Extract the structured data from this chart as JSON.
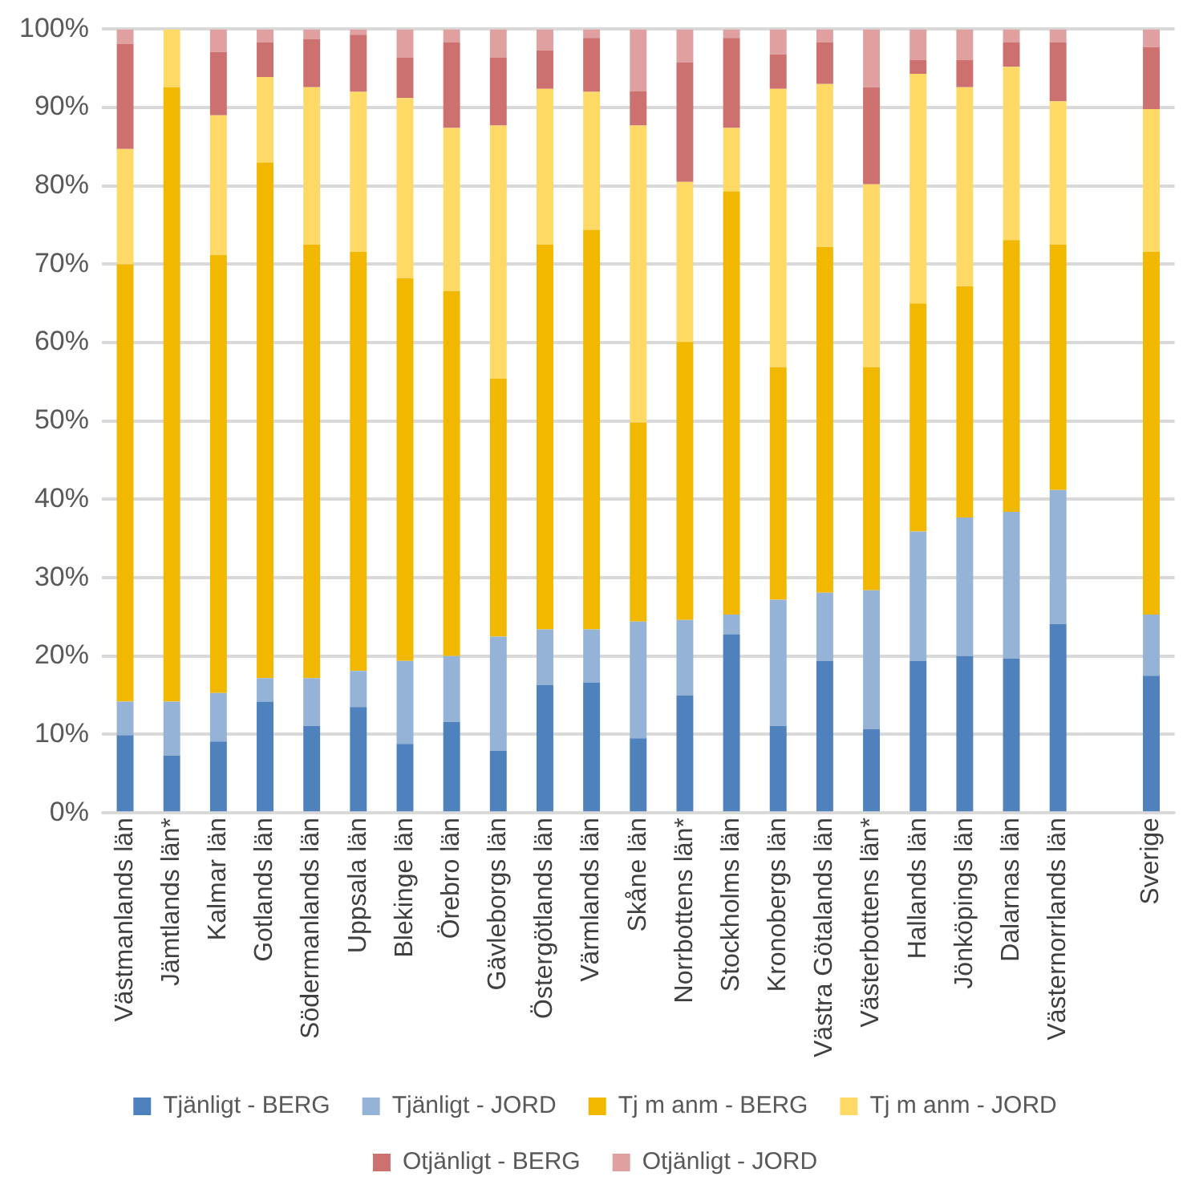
{
  "chart_data": {
    "type": "bar",
    "stacked": true,
    "categories": [
      "Västmanlands län",
      "Jämtlands län*",
      "Kalmar län",
      "Gotlands län",
      "Södermanlands län",
      "Uppsala län",
      "Blekinge län",
      "Örebro län",
      "Gävleborgs län",
      "Östergötlands län",
      "Värmlands län",
      "Skåne län",
      "Norrbottens län*",
      "Stockholms län",
      "Kronobergs län",
      "Västra Götalands län",
      "Västerbottens län*",
      "Hallands län",
      "Jönköpings län",
      "Dalarnas län",
      "Västernorrlands län",
      null,
      "Sverige"
    ],
    "series": [
      {
        "name": "Tjänligt - BERG",
        "color": "#4f81bd",
        "values": [
          9.9,
          7.3,
          9.1,
          14.2,
          11.1,
          13.5,
          8.8,
          11.6,
          7.9,
          16.3,
          16.6,
          9.5,
          15.0,
          22.8,
          11.1,
          19.4,
          10.7,
          19.4,
          20.0,
          19.7,
          24.1,
          null,
          17.5
        ]
      },
      {
        "name": "Tjänligt - JORD",
        "color": "#95b3d7",
        "values": [
          4.3,
          6.9,
          6.2,
          3.0,
          6.1,
          4.6,
          10.6,
          8.4,
          14.6,
          7.1,
          6.8,
          14.9,
          9.6,
          2.5,
          16.1,
          8.7,
          17.7,
          16.5,
          17.7,
          18.7,
          17.1,
          null,
          7.8
        ]
      },
      {
        "name": "Tj m anm - BERG",
        "color": "#f2b800",
        "values": [
          55.8,
          78.4,
          55.9,
          65.8,
          55.3,
          53.5,
          48.8,
          46.6,
          32.9,
          49.1,
          51.0,
          25.4,
          35.5,
          54.0,
          29.7,
          44.1,
          28.5,
          29.1,
          29.5,
          34.7,
          31.3,
          null,
          46.3
        ]
      },
      {
        "name": "Tj m anm - JORD",
        "color": "#ffd966",
        "values": [
          14.7,
          7.4,
          17.8,
          10.9,
          20.1,
          20.4,
          23.0,
          20.8,
          32.3,
          19.9,
          17.6,
          37.9,
          20.4,
          8.1,
          35.5,
          20.8,
          23.3,
          29.3,
          25.4,
          22.1,
          18.3,
          null,
          18.2
        ]
      },
      {
        "name": "Otjänligt - BERG",
        "color": "#cd7070",
        "values": [
          13.4,
          0,
          8.1,
          4.4,
          6.1,
          7.3,
          5.2,
          10.9,
          8.7,
          4.9,
          6.9,
          4.4,
          15.3,
          11.5,
          4.4,
          5.3,
          12.4,
          1.8,
          3.5,
          3.1,
          7.5,
          null,
          7.9
        ]
      },
      {
        "name": "Otjänligt - JORD",
        "color": "#e0a0a0",
        "values": [
          1.9,
          0,
          2.9,
          1.7,
          1.3,
          0.7,
          3.6,
          1.7,
          3.6,
          2.7,
          1.1,
          7.9,
          4.2,
          1.1,
          3.2,
          1.7,
          7.4,
          3.9,
          3.9,
          1.7,
          1.7,
          null,
          2.3
        ]
      }
    ],
    "ylim": [
      0,
      100
    ],
    "yticks": [
      {
        "value": 0,
        "label": "0%"
      },
      {
        "value": 10,
        "label": "10%"
      },
      {
        "value": 20,
        "label": "20%"
      },
      {
        "value": 30,
        "label": "30%"
      },
      {
        "value": 40,
        "label": "40%"
      },
      {
        "value": 50,
        "label": "50%"
      },
      {
        "value": 60,
        "label": "60%"
      },
      {
        "value": 70,
        "label": "70%"
      },
      {
        "value": 80,
        "label": "80%"
      },
      {
        "value": 90,
        "label": "90%"
      },
      {
        "value": 100,
        "label": "100%"
      }
    ],
    "grid": "y",
    "legend": "bottom"
  }
}
